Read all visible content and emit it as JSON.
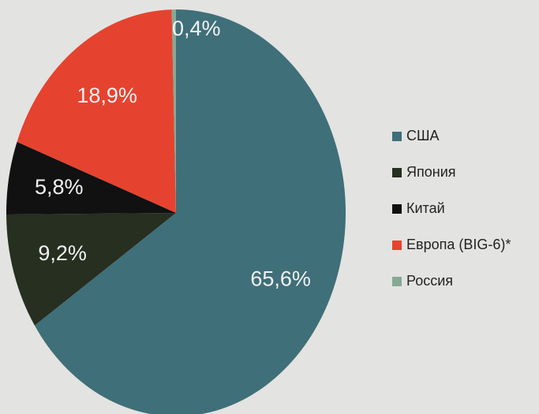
{
  "chart_data": {
    "type": "pie",
    "categories": [
      "США",
      "Япония",
      "Китай",
      "Европа (BIG-6)*",
      "Россия"
    ],
    "values": [
      65.6,
      9.2,
      5.8,
      18.9,
      0.4
    ],
    "value_labels": [
      "65,6%",
      "9,2%",
      "5,8%",
      "18,9%",
      "0,4%"
    ],
    "colors": [
      "#3f6f79",
      "#262f20",
      "#111111",
      "#e5432f",
      "#86a996"
    ],
    "legend": "right"
  }
}
